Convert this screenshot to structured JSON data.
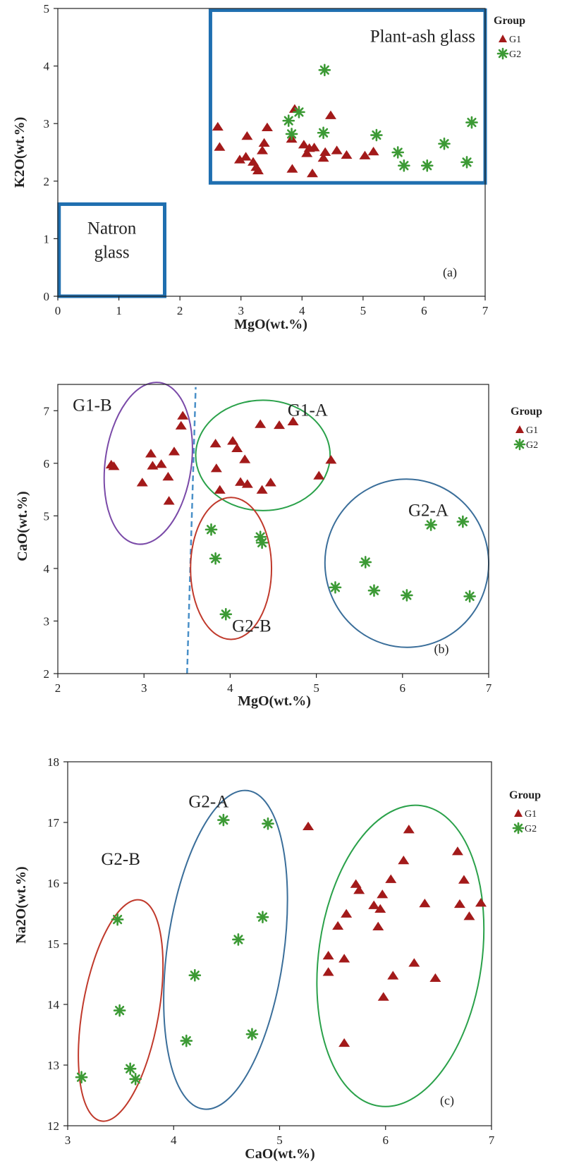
{
  "colors": {
    "g1": "#a31a1a",
    "g2": "#3c9a35",
    "region_box": "#1f6fb0",
    "ellipse_g1a": "#2aa14a",
    "ellipse_g1b": "#7a4aa8",
    "ellipse_g2a": "#3a6e9a",
    "ellipse_g2b": "#c0392b",
    "divider": "#4a90c8",
    "axis": "#222222"
  },
  "legend": {
    "title": "Group",
    "g1_label": "G1",
    "g2_label": "G2"
  },
  "chart_data": [
    {
      "type": "scatter",
      "panel_label": "(a)",
      "xlabel": "MgO(wt.%)",
      "ylabel": "K2O(wt.%)",
      "xlim": [
        0,
        7
      ],
      "ylim": [
        0,
        5
      ],
      "xticks": [
        0,
        1,
        2,
        3,
        4,
        5,
        6,
        7
      ],
      "yticks": [
        0,
        1,
        2,
        3,
        4,
        5
      ],
      "legend_position": "right",
      "regions": [
        {
          "label": "Plant-ash glass",
          "x0": 2.5,
          "x1": 7,
          "y0": 1.97,
          "y1": 4.97
        },
        {
          "label_lines": [
            "Natron",
            "glass"
          ],
          "x0": 0.02,
          "x1": 1.75,
          "y0": 0,
          "y1": 1.6
        }
      ],
      "series": [
        {
          "name": "G1",
          "marker": "triangle",
          "points": [
            [
              2.62,
              2.94
            ],
            [
              2.65,
              2.59
            ],
            [
              2.98,
              2.37
            ],
            [
              3.08,
              2.42
            ],
            [
              3.1,
              2.78
            ],
            [
              3.2,
              2.33
            ],
            [
              3.25,
              2.24
            ],
            [
              3.28,
              2.18
            ],
            [
              3.35,
              2.53
            ],
            [
              3.38,
              2.66
            ],
            [
              3.43,
              2.93
            ],
            [
              3.83,
              2.73
            ],
            [
              3.84,
              2.21
            ],
            [
              3.88,
              3.25
            ],
            [
              4.03,
              2.63
            ],
            [
              4.08,
              2.48
            ],
            [
              4.12,
              2.57
            ],
            [
              4.17,
              2.13
            ],
            [
              4.2,
              2.58
            ],
            [
              4.35,
              2.4
            ],
            [
              4.38,
              2.5
            ],
            [
              4.47,
              3.14
            ],
            [
              4.57,
              2.53
            ],
            [
              4.73,
              2.45
            ],
            [
              5.03,
              2.44
            ],
            [
              5.17,
              2.51
            ]
          ]
        },
        {
          "name": "G2",
          "marker": "asterisk",
          "points": [
            [
              3.78,
              3.05
            ],
            [
              3.83,
              2.82
            ],
            [
              3.95,
              3.2
            ],
            [
              4.35,
              2.84
            ],
            [
              4.37,
              3.93
            ],
            [
              5.22,
              2.8
            ],
            [
              5.57,
              2.5
            ],
            [
              5.67,
              2.27
            ],
            [
              6.05,
              2.27
            ],
            [
              6.33,
              2.65
            ],
            [
              6.7,
              2.33
            ],
            [
              6.78,
              3.02
            ]
          ]
        }
      ]
    },
    {
      "type": "scatter",
      "panel_label": "(b)",
      "xlabel": "MgO(wt.%)",
      "ylabel": "CaO(wt.%)",
      "xlim": [
        2,
        7
      ],
      "ylim": [
        2,
        7.5
      ],
      "xticks": [
        2,
        3,
        4,
        5,
        6,
        7
      ],
      "yticks": [
        2,
        3,
        4,
        5,
        6,
        7
      ],
      "legend_position": "right",
      "divider": {
        "x0": 3.5,
        "y0": 2.0,
        "x1": 3.6,
        "y1": 7.45
      },
      "clusters": [
        {
          "label": "G1-A",
          "cx": 4.38,
          "cy": 6.15,
          "rx": 0.78,
          "ry": 1.05,
          "angle": 0,
          "label_x": 4.9,
          "label_y": 6.9
        },
        {
          "label": "G1-B",
          "cx": 3.05,
          "cy": 6.0,
          "rx": 0.5,
          "ry": 1.55,
          "angle": 8,
          "label_x": 2.4,
          "label_y": 7.0
        },
        {
          "label": "G2-A",
          "cx": 6.05,
          "cy": 4.1,
          "rx": 0.95,
          "ry": 1.6,
          "angle": -5,
          "label_x": 6.3,
          "label_y": 5.0
        },
        {
          "label": "G2-B",
          "cx": 4.01,
          "cy": 4.0,
          "rx": 0.47,
          "ry": 1.35,
          "angle": 0,
          "label_x": 4.25,
          "label_y": 2.8
        }
      ],
      "series": [
        {
          "name": "G1",
          "marker": "triangle",
          "points": [
            [
              2.62,
              5.97
            ],
            [
              2.65,
              5.94
            ],
            [
              2.98,
              5.63
            ],
            [
              3.08,
              6.18
            ],
            [
              3.1,
              5.95
            ],
            [
              3.2,
              5.98
            ],
            [
              3.28,
              5.74
            ],
            [
              3.29,
              5.28
            ],
            [
              3.35,
              6.22
            ],
            [
              3.43,
              6.71
            ],
            [
              3.45,
              6.9
            ],
            [
              3.83,
              6.37
            ],
            [
              3.84,
              5.9
            ],
            [
              3.88,
              5.49
            ],
            [
              4.03,
              6.42
            ],
            [
              4.08,
              6.28
            ],
            [
              4.12,
              5.64
            ],
            [
              4.17,
              6.07
            ],
            [
              4.2,
              5.6
            ],
            [
              4.35,
              6.74
            ],
            [
              4.37,
              5.49
            ],
            [
              4.47,
              5.63
            ],
            [
              4.57,
              6.72
            ],
            [
              4.73,
              6.79
            ],
            [
              5.03,
              5.76
            ],
            [
              5.17,
              6.06
            ]
          ]
        },
        {
          "name": "G2",
          "marker": "asterisk",
          "points": [
            [
              3.78,
              4.74
            ],
            [
              3.83,
              4.19
            ],
            [
              3.95,
              3.13
            ],
            [
              4.35,
              4.6
            ],
            [
              4.37,
              4.49
            ],
            [
              5.22,
              3.64
            ],
            [
              5.57,
              4.12
            ],
            [
              5.67,
              3.58
            ],
            [
              6.05,
              3.49
            ],
            [
              6.33,
              4.83
            ],
            [
              6.7,
              4.89
            ],
            [
              6.78,
              3.47
            ]
          ]
        }
      ]
    },
    {
      "type": "scatter",
      "panel_label": "(c)",
      "xlabel": "CaO(wt.%)",
      "ylabel": "Na2O(wt.%)",
      "xlim": [
        3,
        7
      ],
      "ylim": [
        12,
        18
      ],
      "xticks": [
        3,
        4,
        5,
        6,
        7
      ],
      "yticks": [
        12,
        13,
        14,
        15,
        16,
        17,
        18
      ],
      "legend_position": "right",
      "clusters": [
        {
          "label": "G2-B",
          "cx": 3.5,
          "cy": 13.9,
          "rx": 0.36,
          "ry": 1.85,
          "angle": 10,
          "label_x": 3.5,
          "label_y": 16.3
        },
        {
          "label": "G2-A",
          "cx": 4.49,
          "cy": 14.9,
          "rx": 0.55,
          "ry": 2.65,
          "angle": 8,
          "label_x": 4.33,
          "label_y": 17.25
        },
        {
          "label": "G1",
          "cx": 6.14,
          "cy": 14.8,
          "rx": 0.77,
          "ry": 2.5,
          "angle": 8,
          "label_x": null,
          "label_y": null
        }
      ],
      "series": [
        {
          "name": "G1",
          "marker": "triangle",
          "points": [
            [
              5.27,
              16.93
            ],
            [
              5.46,
              14.8
            ],
            [
              5.46,
              14.53
            ],
            [
              5.55,
              15.29
            ],
            [
              5.61,
              14.75
            ],
            [
              5.61,
              13.36
            ],
            [
              5.63,
              15.49
            ],
            [
              5.72,
              15.98
            ],
            [
              5.75,
              15.88
            ],
            [
              5.89,
              15.63
            ],
            [
              5.93,
              15.28
            ],
            [
              5.95,
              15.57
            ],
            [
              5.97,
              15.81
            ],
            [
              5.98,
              14.12
            ],
            [
              6.05,
              16.06
            ],
            [
              6.07,
              14.47
            ],
            [
              6.17,
              16.37
            ],
            [
              6.22,
              16.88
            ],
            [
              6.27,
              14.68
            ],
            [
              6.37,
              15.66
            ],
            [
              6.47,
              14.43
            ],
            [
              6.68,
              16.52
            ],
            [
              6.7,
              15.65
            ],
            [
              6.74,
              16.05
            ],
            [
              6.79,
              15.45
            ],
            [
              6.9,
              15.67
            ]
          ]
        },
        {
          "name": "G2",
          "marker": "asterisk",
          "points": [
            [
              3.13,
              12.8
            ],
            [
              3.47,
              15.4
            ],
            [
              3.49,
              13.9
            ],
            [
              3.59,
              12.94
            ],
            [
              3.64,
              12.77
            ],
            [
              4.12,
              13.4
            ],
            [
              4.2,
              14.48
            ],
            [
              4.47,
              17.04
            ],
            [
              4.61,
              15.07
            ],
            [
              4.74,
              13.51
            ],
            [
              4.84,
              15.44
            ],
            [
              4.89,
              16.98
            ]
          ]
        }
      ]
    }
  ]
}
